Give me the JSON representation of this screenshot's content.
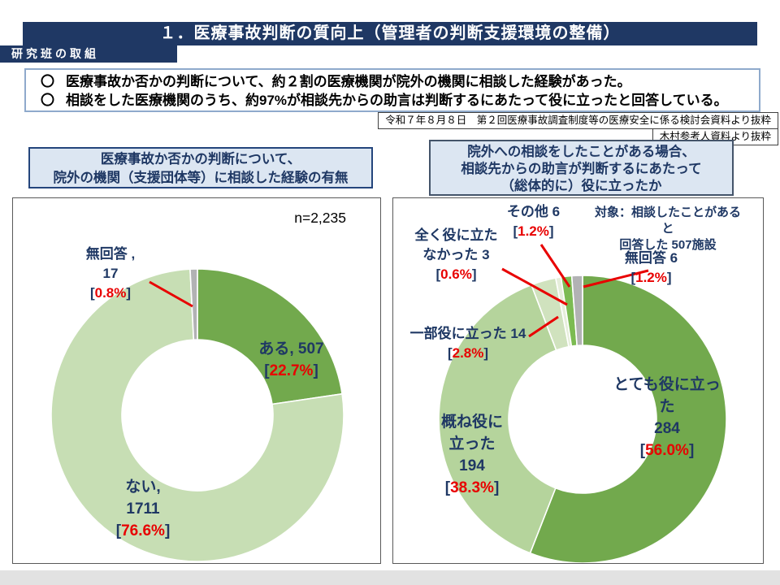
{
  "ui": {
    "bullet": "〇",
    "lb": "[",
    "rb": "]"
  },
  "colors": {
    "navy": "#1F3864",
    "header_bg": "#DCE6F2",
    "red": "#E80000",
    "dark_green": "#72A94D",
    "light_green_left": "#C7DEB4",
    "light_green_right": "#B5D49C",
    "pale_green": "#D0E2BE",
    "faint_green": "#E6EEDB",
    "bright_green": "#7CBB52",
    "gray": "#B2B2B4"
  },
  "header": {
    "title": "１．医療事故判断の質向上（管理者の判断支援環境の整備）",
    "tab": "研究班の取組"
  },
  "summary_bullets": [
    "医療事故か否かの判断について、約２割の医療機関が院外の機関に相談した経験があった。",
    "相談をした医療機関のうち、約97%が相談先からの助言は判断するにあたって役に立ったと回答している。"
  ],
  "sources": [
    "令和７年８月８日　第２回医療事故調査制度等の医療安全に係る検討会資料より抜粋",
    "木村参考人資料より抜粋"
  ],
  "left_chart": {
    "header_lines": [
      "医療事故か否かの判断について、",
      "院外の機関（支援団体等）に相談した経験の有無"
    ],
    "n_label": "n=2,235",
    "callouts": {
      "mukaito": {
        "lines": [
          "無回答 ,",
          "17"
        ],
        "pct": "0.8%"
      },
      "aru": {
        "lines": [
          "ある, 507"
        ],
        "pct": "22.7%"
      },
      "nai": {
        "lines": [
          "ない,",
          "1711"
        ],
        "pct": "76.6%"
      }
    }
  },
  "right_chart": {
    "header_lines": [
      "院外への相談をしたことがある場合、",
      "相談先からの助言が判断するにあたって",
      "（総体的に）役に立ったか"
    ],
    "target_note_lines": [
      "対象：相談したことがあると",
      "回答した 507施設"
    ],
    "callouts": {
      "sonota": {
        "lines": [
          "その他  6"
        ],
        "pct": "1.2%"
      },
      "mattaku": {
        "lines": [
          "全く役に立た",
          "なかった  3"
        ],
        "pct": "0.6%"
      },
      "mukaito": {
        "lines": [
          "無回答  6"
        ],
        "pct": "1.2%"
      },
      "ichibu": {
        "lines": [
          "一部役に立った 14"
        ],
        "pct": "2.8%"
      },
      "totemo": {
        "lines": [
          "とても役に立っ",
          "た",
          "284"
        ],
        "pct": "56.0%"
      },
      "oomune": {
        "lines": [
          "概ね役に",
          "立った",
          "194"
        ],
        "pct": "38.3%"
      }
    }
  },
  "chart_data": [
    {
      "type": "pie",
      "subtype": "donut",
      "title": "医療事故か否かの判断について、院外の機関（支援団体等）に相談した経験の有無",
      "n_label": "n=2,235",
      "n_total": 2235,
      "legend_position": "none",
      "slices": [
        {
          "label": "ある",
          "value": 507,
          "pct": 22.7,
          "color": "#72A94D"
        },
        {
          "label": "ない",
          "value": 1711,
          "pct": 76.6,
          "color": "#C7DEB4"
        },
        {
          "label": "無回答",
          "value": 17,
          "pct": 0.8,
          "color": "#B2B2B4"
        }
      ]
    },
    {
      "type": "pie",
      "subtype": "donut",
      "title": "院外への相談をしたことがある場合、相談先からの助言が判断するにあたって（総体的に）役に立ったか",
      "target_note": "対象：相談したことがあると回答した 507施設",
      "n_total": 507,
      "legend_position": "none",
      "slices": [
        {
          "label": "とても役に立った",
          "value": 284,
          "pct": 56.0,
          "color": "#72A94D"
        },
        {
          "label": "概ね役に立った",
          "value": 194,
          "pct": 38.3,
          "color": "#B5D49C"
        },
        {
          "label": "一部役に立った",
          "value": 14,
          "pct": 2.8,
          "color": "#D0E2BE"
        },
        {
          "label": "全く役に立たなかった",
          "value": 3,
          "pct": 0.6,
          "color": "#E6EEDB"
        },
        {
          "label": "その他",
          "value": 6,
          "pct": 1.2,
          "color": "#7CBB52"
        },
        {
          "label": "無回答",
          "value": 6,
          "pct": 1.2,
          "color": "#B2B2B4"
        }
      ]
    }
  ]
}
